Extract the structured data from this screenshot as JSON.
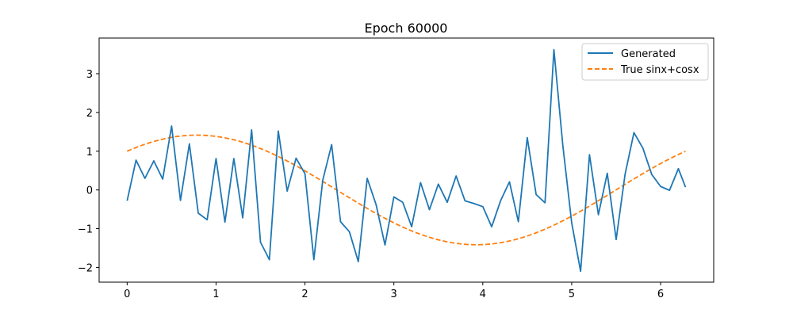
{
  "chart_data": {
    "type": "line",
    "title": "Epoch 60000",
    "xlabel": "",
    "ylabel": "",
    "xlim": [
      -0.315,
      6.597
    ],
    "ylim": [
      -2.38,
      3.92
    ],
    "xticks": [
      0,
      1,
      2,
      3,
      4,
      5,
      6
    ],
    "xtick_labels": [
      "0",
      "1",
      "2",
      "3",
      "4",
      "5",
      "6"
    ],
    "yticks": [
      -2,
      -1,
      0,
      1,
      2,
      3
    ],
    "ytick_labels": [
      "−2",
      "−1",
      "0",
      "1",
      "2",
      "3"
    ],
    "grid": false,
    "legend_position": "top-right",
    "series": [
      {
        "name": "Generated",
        "style": "solid",
        "color": "#1f77b4",
        "x": [
          0.0,
          0.1,
          0.2,
          0.3,
          0.4,
          0.5,
          0.6,
          0.7,
          0.8,
          0.9,
          1.0,
          1.1,
          1.2,
          1.3,
          1.4,
          1.5,
          1.6,
          1.7,
          1.8,
          1.9,
          2.0,
          2.1,
          2.2,
          2.3,
          2.4,
          2.5,
          2.6,
          2.7,
          2.8,
          2.9,
          3.0,
          3.1,
          3.2,
          3.3,
          3.4,
          3.5,
          3.6,
          3.7,
          3.8,
          3.9,
          4.0,
          4.1,
          4.2,
          4.3,
          4.4,
          4.5,
          4.6,
          4.7,
          4.8,
          4.9,
          5.0,
          5.1,
          5.2,
          5.3,
          5.4,
          5.5,
          5.6,
          5.7,
          5.8,
          5.9,
          6.0,
          6.1,
          6.2,
          6.28
        ],
        "values": [
          -0.28,
          0.77,
          0.3,
          0.75,
          0.28,
          1.65,
          -0.27,
          1.19,
          -0.6,
          -0.77,
          0.81,
          -0.83,
          0.81,
          -0.72,
          1.55,
          -1.35,
          -1.8,
          1.52,
          -0.03,
          0.82,
          0.42,
          -1.8,
          0.25,
          1.17,
          -0.82,
          -1.08,
          -1.85,
          0.3,
          -0.38,
          -1.42,
          -0.18,
          -0.32,
          -0.95,
          0.19,
          -0.51,
          0.15,
          -0.32,
          0.36,
          -0.28,
          -0.35,
          -0.43,
          -0.95,
          -0.28,
          0.21,
          -0.82,
          1.35,
          -0.12,
          -0.33,
          3.62,
          1.15,
          -0.85,
          -2.1,
          0.91,
          -0.64,
          0.43,
          -1.28,
          0.4,
          1.48,
          1.08,
          0.4,
          0.09,
          -0.01,
          0.55,
          0.07
        ]
      },
      {
        "name": "True sinx+cosx",
        "style": "dashed",
        "color": "#ff7f0e",
        "function": "sin(x)+cos(x)",
        "x_range": [
          0,
          6.28
        ]
      }
    ]
  }
}
